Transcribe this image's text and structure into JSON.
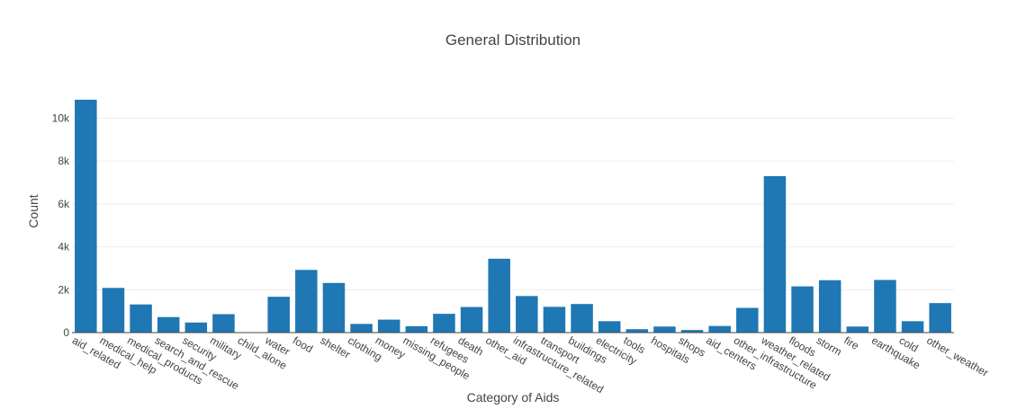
{
  "chart_data": {
    "type": "bar",
    "title": "General Distribution",
    "xlabel": "Category of Aids",
    "ylabel": "Count",
    "ylim": [
      0,
      10900
    ],
    "yticks": [
      0,
      2000,
      4000,
      6000,
      8000,
      10000
    ],
    "ytick_labels": [
      "0",
      "2k",
      "4k",
      "6k",
      "8k",
      "10k"
    ],
    "grid": true,
    "bar_color": "#1f77b4",
    "categories": [
      "aid_related",
      "medical_help",
      "medical_products",
      "search_and_rescue",
      "security",
      "military",
      "child_alone",
      "water",
      "food",
      "shelter",
      "clothing",
      "money",
      "missing_people",
      "refugees",
      "death",
      "other_aid",
      "infrastructure_related",
      "transport",
      "buildings",
      "electricity",
      "tools",
      "hospitals",
      "shops",
      "aid_centers",
      "other_infrastructure",
      "weather_related",
      "floods",
      "storm",
      "fire",
      "earthquake",
      "cold",
      "other_weather"
    ],
    "values": [
      10860,
      2084,
      1313,
      724,
      471,
      860,
      0,
      1672,
      2923,
      2314,
      405,
      604,
      298,
      875,
      1194,
      3446,
      1705,
      1201,
      1333,
      532,
      159,
      283,
      120,
      309,
      1151,
      7297,
      2155,
      2443,
      282,
      2455,
      530,
      1376
    ]
  }
}
